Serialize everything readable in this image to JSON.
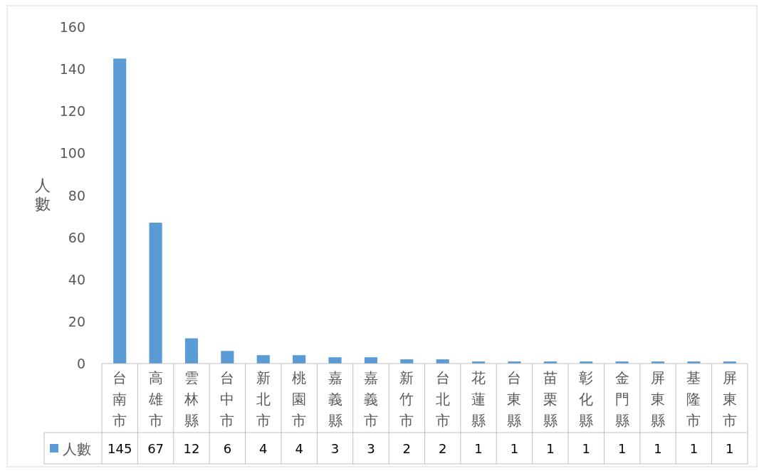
{
  "chart_data": {
    "type": "bar",
    "ylabel": "人數",
    "categories": [
      "台南市",
      "高雄市",
      "雲林縣",
      "台中市",
      "新北市",
      "桃園市",
      "嘉義縣",
      "嘉義市",
      "新竹市",
      "台北市",
      "花蓮縣",
      "台東縣",
      "苗栗縣",
      "彰化縣",
      "金門縣",
      "屏東縣",
      "基隆市",
      "屏東市"
    ],
    "series": [
      {
        "name": "人數",
        "color": "#5b9bd5",
        "values": [
          145,
          67,
          12,
          6,
          4,
          4,
          3,
          3,
          2,
          2,
          1,
          1,
          1,
          1,
          1,
          1,
          1,
          1
        ]
      }
    ],
    "ylim": [
      0,
      160
    ],
    "yticks": [
      0,
      20,
      40,
      60,
      80,
      100,
      120,
      140,
      160
    ],
    "legend": "bottom",
    "data_labels": true
  }
}
